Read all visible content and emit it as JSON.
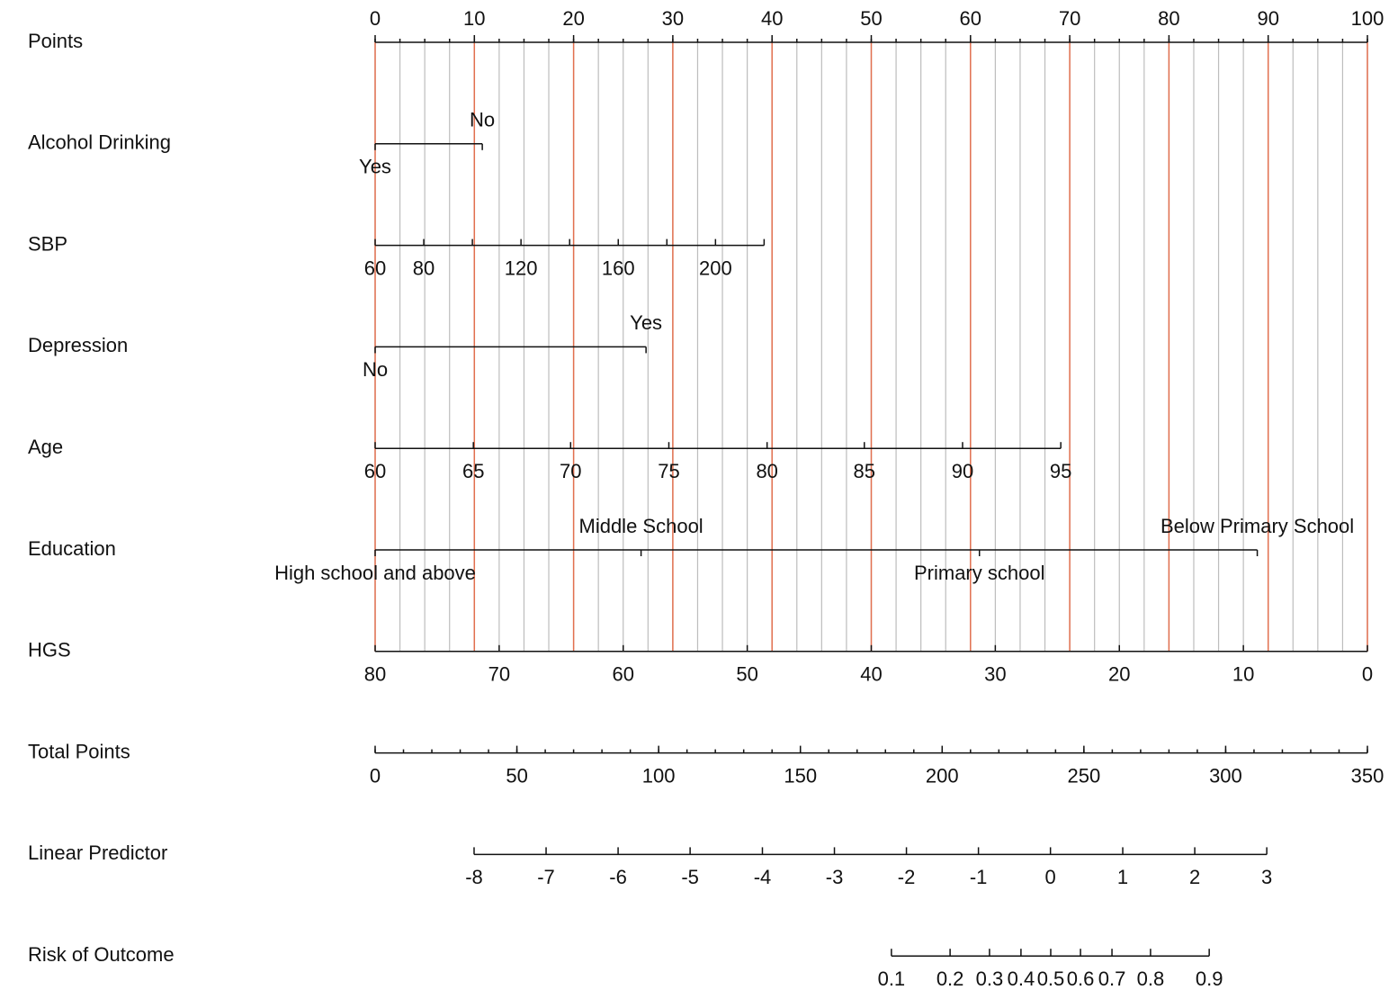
{
  "chart_data": {
    "type": "nomogram",
    "points_label": "Points",
    "xlim": [
      0,
      100
    ],
    "xticks": [
      0,
      10,
      20,
      30,
      40,
      50,
      60,
      70,
      80,
      90,
      100
    ],
    "grid": true,
    "grid_color": "#e2704f",
    "minor_grid_step": 2.5,
    "minor_grid_color": "#bdbdbd",
    "rows": [
      {
        "name": "Alcohol Drinking",
        "levels": [
          "Yes",
          "No"
        ],
        "points": [
          0,
          10.8
        ]
      },
      {
        "name": "SBP",
        "levels": [
          60,
          80,
          null,
          120,
          null,
          160,
          null,
          200,
          null
        ],
        "points": [
          0,
          4.9,
          9.8,
          14.7,
          19.6,
          24.5,
          29.4,
          34.3,
          39.2
        ]
      },
      {
        "name": "Depression",
        "levels": [
          "No",
          "Yes"
        ],
        "points": [
          0,
          27.3
        ]
      },
      {
        "name": "Age",
        "levels": [
          60,
          65,
          70,
          75,
          80,
          85,
          90,
          95
        ],
        "points": [
          0,
          9.9,
          19.7,
          29.6,
          39.5,
          49.3,
          59.2,
          69.1
        ]
      },
      {
        "name": "Education",
        "levels": [
          "High school and above",
          "Middle School",
          "Primary school",
          "Below Primary School"
        ],
        "points": [
          0,
          26.8,
          60.9,
          88.9
        ]
      },
      {
        "name": "HGS",
        "levels": [
          80,
          70,
          60,
          50,
          40,
          30,
          20,
          10,
          0
        ],
        "points": [
          0,
          12.5,
          25,
          37.5,
          50,
          62.5,
          75,
          87.5,
          100
        ]
      }
    ],
    "total_points": {
      "name": "Total Points",
      "xlim": [
        0,
        350
      ],
      "xticks": [
        0,
        50,
        100,
        150,
        200,
        250,
        300,
        350
      ],
      "minor_step": 10
    },
    "outcome_rows": [
      {
        "name": "Linear Predictor",
        "levels": [
          -8,
          -7,
          -6,
          -5,
          -4,
          -3,
          -2,
          -1,
          0,
          1,
          2,
          3
        ],
        "total_points": [
          34.9,
          60.3,
          85.7,
          111.1,
          136.6,
          162.0,
          187.4,
          212.8,
          238.2,
          263.7,
          289.1,
          314.5
        ]
      },
      {
        "name": "Risk of Outcome",
        "levels": [
          0.1,
          0.2,
          0.3,
          0.4,
          0.5,
          0.6,
          0.7,
          0.8,
          0.9
        ],
        "total_points": [
          182.1,
          202.8,
          216.7,
          227.8,
          238.3,
          248.8,
          259.9,
          273.5,
          294.2
        ]
      }
    ]
  }
}
